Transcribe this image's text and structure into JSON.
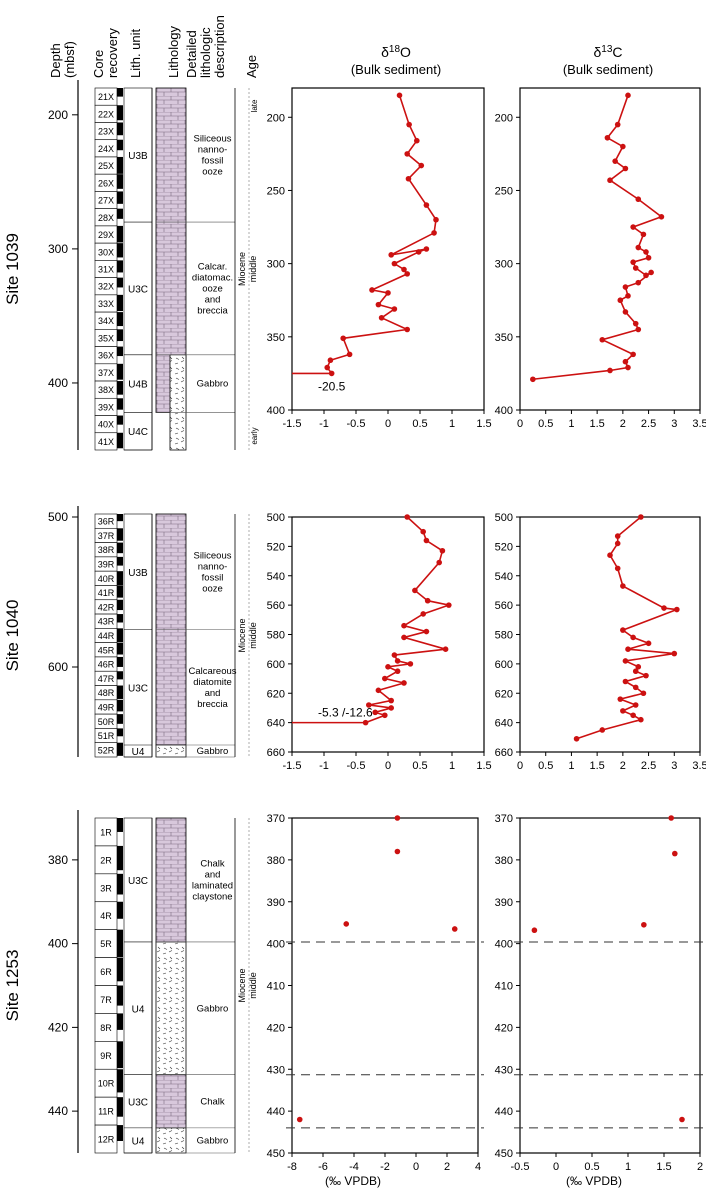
{
  "header": {
    "depth": [
      "Depth",
      "(mbsf)"
    ],
    "core_recovery": [
      "Core",
      "recovery"
    ],
    "lith_unit": "Lith. unit",
    "lithology": "Lithology",
    "description": [
      "Detailed",
      "lithologic",
      "description"
    ],
    "age": "Age",
    "d18o_title": [
      "δ18O",
      "(Bulk sediment)"
    ],
    "d13c_title": [
      "δ13C",
      "(Bulk sediment)"
    ],
    "xlabel": "(‰ VPDB)"
  },
  "colors": {
    "data": "#cc1111",
    "lith_fill": "#d8c8dc",
    "core_fill": "#000000"
  },
  "sites": [
    {
      "name": "Site 1039",
      "depth_ticks": [
        200,
        300,
        400
      ],
      "cores": [
        "21X",
        "22X",
        "23X",
        "24X",
        "25X",
        "26X",
        "27X",
        "28X",
        "29X",
        "30X",
        "31X",
        "32X",
        "33X",
        "34X",
        "35X",
        "36X",
        "37X",
        "38X",
        "39X",
        "40X",
        "41X"
      ],
      "units": [
        {
          "label": "U3B",
          "top": 180,
          "bottom": 280
        },
        {
          "label": "U3C",
          "top": 280,
          "bottom": 379
        },
        {
          "label": "U4B",
          "top": 379,
          "bottom": 422
        },
        {
          "label": "U4C",
          "top": 422,
          "bottom": 450
        }
      ],
      "lithology": [
        {
          "type": "limestone",
          "top": 180,
          "bottom": 422
        },
        {
          "type": "gabbro",
          "top": 379,
          "bottom": 450
        }
      ],
      "descriptions": [
        {
          "lines": [
            "Siliceous",
            "nanno-",
            "fossil",
            "ooze"
          ],
          "top": 180,
          "bottom": 280
        },
        {
          "lines": [
            "Calcar.",
            "diatomac.",
            "ooze",
            "and",
            "breccia"
          ],
          "top": 280,
          "bottom": 379
        },
        {
          "lines": [
            "Gabbro"
          ],
          "top": 379,
          "bottom": 422
        }
      ],
      "age": {
        "epoch": "Miocene",
        "stage": "middle",
        "late": "late",
        "early": "early"
      }
    },
    {
      "name": "Site 1040",
      "depth_ticks": [
        500,
        600
      ],
      "cores": [
        "36R",
        "37R",
        "38R",
        "39R",
        "40R",
        "41R",
        "42R",
        "43R",
        "44R",
        "45R",
        "46R",
        "47R",
        "48R",
        "49R",
        "50R",
        "51R",
        "52R"
      ],
      "units": [
        {
          "label": "U3B",
          "top": 498,
          "bottom": 575
        },
        {
          "label": "U3C",
          "top": 575,
          "bottom": 652
        },
        {
          "label": "U4",
          "top": 652,
          "bottom": 660
        }
      ],
      "lithology": [
        {
          "type": "limestone",
          "top": 498,
          "bottom": 652
        },
        {
          "type": "gabbro",
          "top": 652,
          "bottom": 660
        }
      ],
      "descriptions": [
        {
          "lines": [
            "Siliceous",
            "nanno-",
            "fossil",
            "ooze"
          ],
          "top": 498,
          "bottom": 575
        },
        {
          "lines": [
            "Calcareous",
            "diatomite",
            "and",
            "breccia"
          ],
          "top": 575,
          "bottom": 652
        },
        {
          "lines": [
            "Gabbro"
          ],
          "top": 652,
          "bottom": 660
        }
      ],
      "age": {
        "epoch": "Miocene",
        "stage": "middle"
      }
    },
    {
      "name": "Site 1253",
      "depth_ticks": [
        380,
        400,
        420,
        440
      ],
      "cores": [
        "1R",
        "2R",
        "3R",
        "4R",
        "5R",
        "6R",
        "7R",
        "8R",
        "9R",
        "10R",
        "11R",
        "12R"
      ],
      "units": [
        {
          "label": "U3C",
          "top": 370,
          "bottom": 399.6
        },
        {
          "label": "U4",
          "top": 399.6,
          "bottom": 431.3
        },
        {
          "label": "U3C",
          "top": 431.3,
          "bottom": 444
        },
        {
          "label": "U4",
          "top": 444,
          "bottom": 450
        }
      ],
      "lithology": [
        {
          "type": "limestone",
          "top": 370,
          "bottom": 399.6
        },
        {
          "type": "gabbro",
          "top": 399.6,
          "bottom": 431.3
        },
        {
          "type": "limestone",
          "top": 431.3,
          "bottom": 444
        },
        {
          "type": "gabbro",
          "top": 444,
          "bottom": 450
        }
      ],
      "descriptions": [
        {
          "lines": [
            "Chalk",
            "and",
            "laminated",
            "claystone"
          ],
          "top": 370,
          "bottom": 399.6
        },
        {
          "lines": [
            "Gabbro"
          ],
          "top": 399.6,
          "bottom": 431.3
        },
        {
          "lines": [
            "Chalk"
          ],
          "top": 431.3,
          "bottom": 444
        },
        {
          "lines": [
            "Gabbro"
          ],
          "top": 444,
          "bottom": 450
        }
      ],
      "age": {
        "epoch": "Miocene",
        "stage": "middle"
      }
    }
  ],
  "chart_data": [
    {
      "type": "line",
      "site": "Site 1039",
      "title": "δ18O",
      "subtitle": "(Bulk sediment)",
      "xlim": [
        -1.5,
        1.5
      ],
      "ylim": [
        400,
        180
      ],
      "xticks": [
        -1.5,
        -1,
        -0.5,
        0,
        0.5,
        1,
        1.5
      ],
      "yticks": [
        200,
        250,
        300,
        350,
        400
      ],
      "x": [
        0.18,
        0.33,
        0.45,
        0.3,
        0.52,
        0.32,
        0.6,
        0.75,
        0.72,
        0.05,
        0.6,
        0.48,
        0.1,
        0.25,
        0.3,
        -0.25,
        0.0,
        -0.15,
        0.1,
        -0.1,
        0.3,
        -0.7,
        -0.6,
        -0.9,
        -0.95,
        -0.88
      ],
      "y": [
        185,
        205,
        216,
        225,
        233,
        242,
        260,
        270,
        279,
        294,
        290,
        292,
        300,
        304,
        307,
        318,
        320,
        328,
        331,
        337,
        345,
        351,
        362,
        366,
        371,
        375
      ],
      "annotation": "-20.5"
    },
    {
      "type": "line",
      "site": "Site 1039",
      "title": "δ13C",
      "subtitle": "(Bulk sediment)",
      "xlim": [
        0,
        3.5
      ],
      "ylim": [
        400,
        180
      ],
      "xticks": [
        0,
        0.5,
        1,
        1.5,
        2,
        2.5,
        3,
        3.5
      ],
      "yticks": [
        200,
        250,
        300,
        350,
        400
      ],
      "x": [
        2.1,
        1.9,
        1.7,
        2.0,
        1.85,
        2.05,
        1.75,
        2.3,
        2.75,
        2.2,
        2.4,
        2.3,
        2.45,
        2.5,
        2.2,
        2.25,
        2.45,
        2.55,
        2.3,
        2.05,
        2.1,
        1.95,
        2.05,
        2.25,
        2.3,
        1.6,
        2.2,
        2.05,
        2.1,
        1.75,
        0.25
      ],
      "y": [
        185,
        205,
        214,
        220,
        230,
        235,
        243,
        256,
        268,
        275,
        280,
        289,
        292,
        296,
        299,
        303,
        308,
        306,
        313,
        316,
        322,
        325,
        333,
        341,
        345,
        352,
        362,
        367,
        371,
        373,
        379
      ]
    },
    {
      "type": "line",
      "site": "Site 1040",
      "title": "δ18O",
      "xlim": [
        -1.5,
        1.5
      ],
      "ylim": [
        660,
        500
      ],
      "xticks": [
        -1.5,
        -1,
        -0.5,
        0,
        0.5,
        1,
        1.5
      ],
      "yticks": [
        500,
        520,
        540,
        560,
        580,
        600,
        620,
        640,
        660
      ],
      "x": [
        0.3,
        0.55,
        0.6,
        0.85,
        0.8,
        0.42,
        0.62,
        0.95,
        0.55,
        0.25,
        0.6,
        0.25,
        0.9,
        0.1,
        0.15,
        0.35,
        0.0,
        0.15,
        -0.05,
        0.25,
        -0.15,
        0.05,
        -0.3,
        0.05,
        -0.2,
        -0.05,
        -0.35
      ],
      "y": [
        500,
        510,
        516,
        523,
        531,
        550,
        557,
        560,
        566,
        574,
        578,
        582,
        590,
        594,
        598,
        600,
        602,
        605,
        610,
        613,
        618,
        625,
        628,
        630,
        633,
        635,
        640
      ],
      "annotation": "-5.3 /-12.6"
    },
    {
      "type": "line",
      "site": "Site 1040",
      "title": "δ13C",
      "xlim": [
        0,
        3.5
      ],
      "ylim": [
        660,
        500
      ],
      "xticks": [
        0,
        0.5,
        1,
        1.5,
        2,
        2.5,
        3,
        3.5
      ],
      "yticks": [
        500,
        520,
        540,
        560,
        580,
        600,
        620,
        640,
        660
      ],
      "x": [
        2.35,
        1.9,
        1.9,
        1.75,
        1.9,
        2.0,
        2.8,
        3.05,
        2.0,
        2.2,
        2.5,
        2.1,
        3.0,
        2.05,
        2.3,
        2.25,
        2.45,
        2.05,
        2.25,
        2.4,
        1.95,
        2.25,
        2.0,
        2.2,
        2.35,
        1.6,
        1.1
      ],
      "y": [
        500,
        513,
        518,
        526,
        535,
        547,
        562,
        563,
        577,
        582,
        586,
        590,
        593,
        598,
        602,
        605,
        608,
        612,
        616,
        620,
        624,
        628,
        632,
        635,
        638,
        645,
        651
      ]
    },
    {
      "type": "scatter",
      "site": "Site 1253",
      "xlabel": "(‰ VPDB)",
      "xlim": [
        -8,
        4
      ],
      "ylim": [
        450,
        370
      ],
      "xticks": [
        -8,
        -6,
        -4,
        -2,
        0,
        2,
        4
      ],
      "yticks": [
        370,
        380,
        390,
        400,
        410,
        420,
        430,
        440,
        450
      ],
      "x": [
        -1.2,
        -1.2,
        -4.5,
        2.5,
        -7.5
      ],
      "y": [
        370,
        378,
        395.3,
        396.5,
        442
      ],
      "boundaries": [
        399.6,
        431.3,
        444
      ]
    },
    {
      "type": "scatter",
      "site": "Site 1253",
      "xlabel": "(‰ VPDB)",
      "xlim": [
        -0.5,
        2
      ],
      "ylim": [
        450,
        370
      ],
      "xticks": [
        -0.5,
        0,
        0.5,
        1,
        1.5,
        2
      ],
      "yticks": [
        370,
        380,
        390,
        400,
        410,
        420,
        430,
        440,
        450
      ],
      "x": [
        1.6,
        1.65,
        1.22,
        -0.3,
        1.75
      ],
      "y": [
        370,
        378.5,
        395.5,
        396.8,
        442
      ],
      "boundaries": [
        399.6,
        431.3,
        444
      ]
    }
  ]
}
